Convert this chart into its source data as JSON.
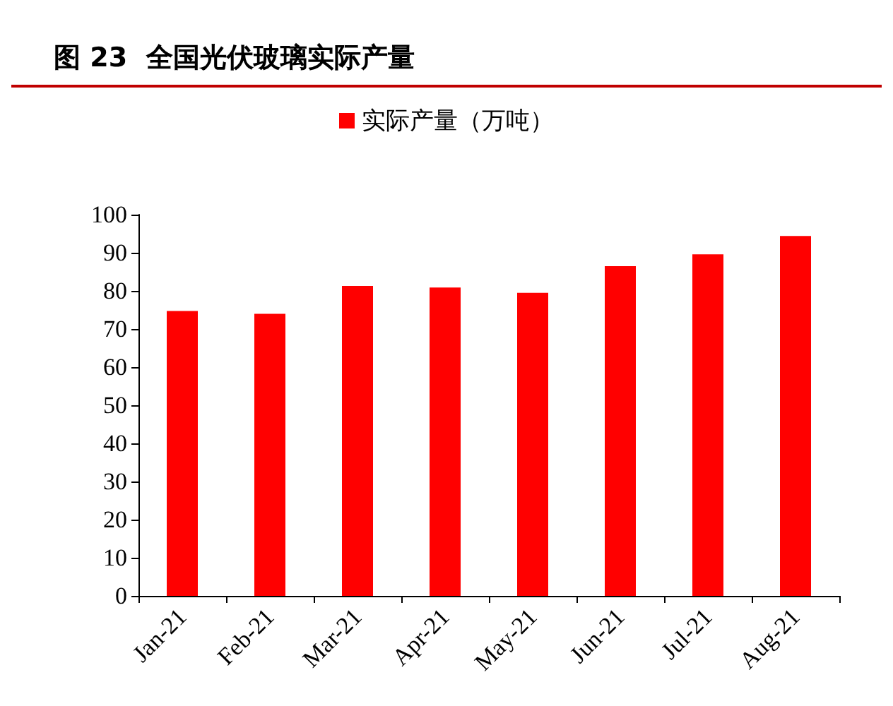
{
  "chart_data": {
    "type": "bar",
    "title": "图 23  全国光伏玻璃实际产量",
    "categories": [
      "Jan-21",
      "Feb-21",
      "Mar-21",
      "Apr-21",
      "May-21",
      "Jun-21",
      "Jul-21",
      "Aug-21"
    ],
    "series": [
      {
        "name": "实际产量（万吨）",
        "color": "#ff0000",
        "values": [
          74.7,
          74.0,
          81.3,
          80.9,
          79.5,
          86.5,
          89.6,
          94.4
        ]
      }
    ],
    "ylim": [
      0,
      100
    ],
    "yticks": [
      0,
      10,
      20,
      30,
      40,
      50,
      60,
      70,
      80,
      90,
      100
    ],
    "grid": false,
    "legend": "top"
  }
}
